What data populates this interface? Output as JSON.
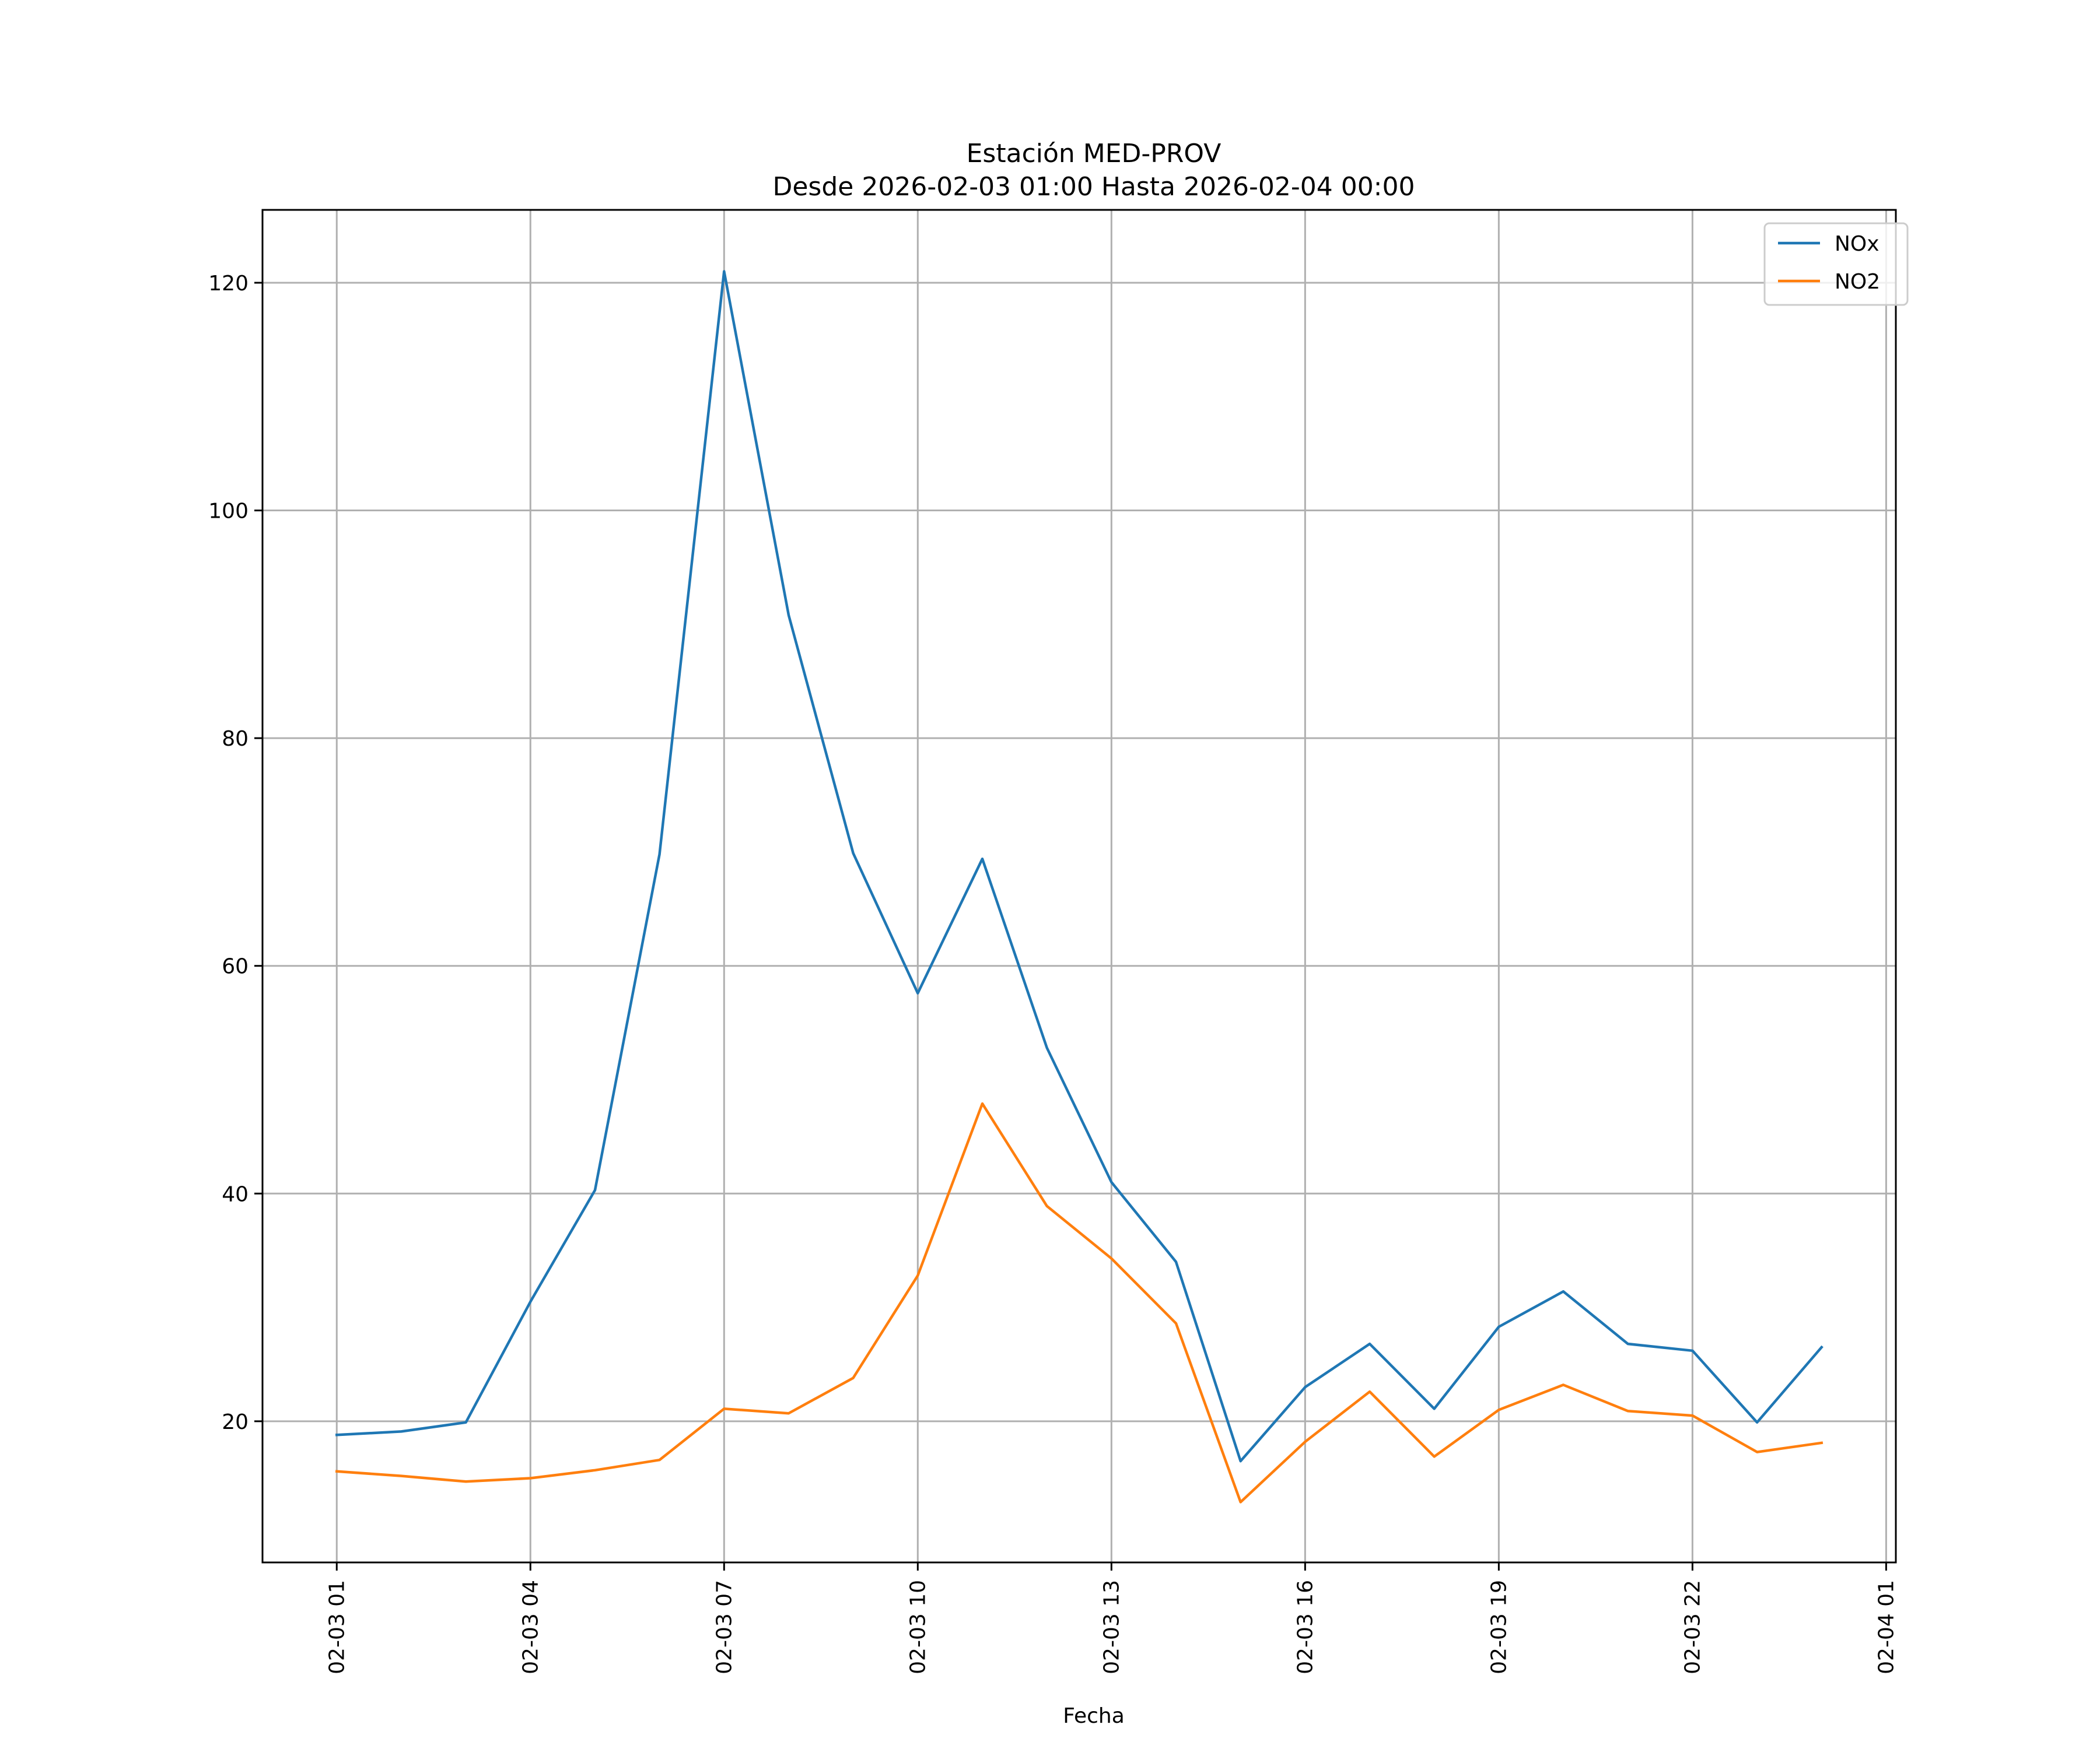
{
  "chart_data": {
    "type": "line",
    "title": "Estación MED-PROV",
    "subtitle": "Desde 2026-02-03 01:00 Hasta 2026-02-04 00:00",
    "xlabel": "Fecha",
    "ylabel": "",
    "x": [
      "2026-02-03 01:00",
      "2026-02-03 02:00",
      "2026-02-03 03:00",
      "2026-02-03 04:00",
      "2026-02-03 05:00",
      "2026-02-03 06:00",
      "2026-02-03 07:00",
      "2026-02-03 08:00",
      "2026-02-03 09:00",
      "2026-02-03 10:00",
      "2026-02-03 11:00",
      "2026-02-03 12:00",
      "2026-02-03 13:00",
      "2026-02-03 14:00",
      "2026-02-03 15:00",
      "2026-02-03 16:00",
      "2026-02-03 17:00",
      "2026-02-03 18:00",
      "2026-02-03 19:00",
      "2026-02-03 20:00",
      "2026-02-03 21:00",
      "2026-02-03 22:00",
      "2026-02-03 23:00",
      "2026-02-04 00:00"
    ],
    "series": [
      {
        "name": "NOx",
        "color": "#1f77b4",
        "values": [
          18.8,
          19.1,
          19.9,
          30.5,
          40.3,
          69.8,
          121.0,
          90.8,
          69.9,
          57.6,
          69.4,
          52.8,
          41.0,
          34.0,
          16.5,
          23.0,
          26.8,
          21.1,
          28.3,
          31.4,
          26.8,
          26.2,
          19.9,
          26.5
        ]
      },
      {
        "name": "NO2",
        "color": "#ff7f0e",
        "values": [
          15.6,
          15.2,
          14.7,
          15.0,
          15.7,
          16.6,
          21.1,
          20.7,
          23.8,
          32.8,
          47.9,
          38.9,
          34.3,
          28.6,
          12.9,
          18.2,
          22.6,
          16.9,
          21.0,
          23.2,
          20.9,
          20.5,
          17.3,
          18.1
        ]
      }
    ],
    "xticks": [
      "02-03 01",
      "02-03 04",
      "02-03 07",
      "02-03 10",
      "02-03 13",
      "02-03 16",
      "02-03 19",
      "02-03 22",
      "02-04 01"
    ],
    "yticks": [
      20,
      40,
      60,
      80,
      100,
      120
    ],
    "xlim": [
      "2026-02-02 23:51",
      "2026-02-04 01:09"
    ],
    "ylim": [
      7.6,
      126.4
    ],
    "grid": true,
    "legend_position": "top-right"
  }
}
